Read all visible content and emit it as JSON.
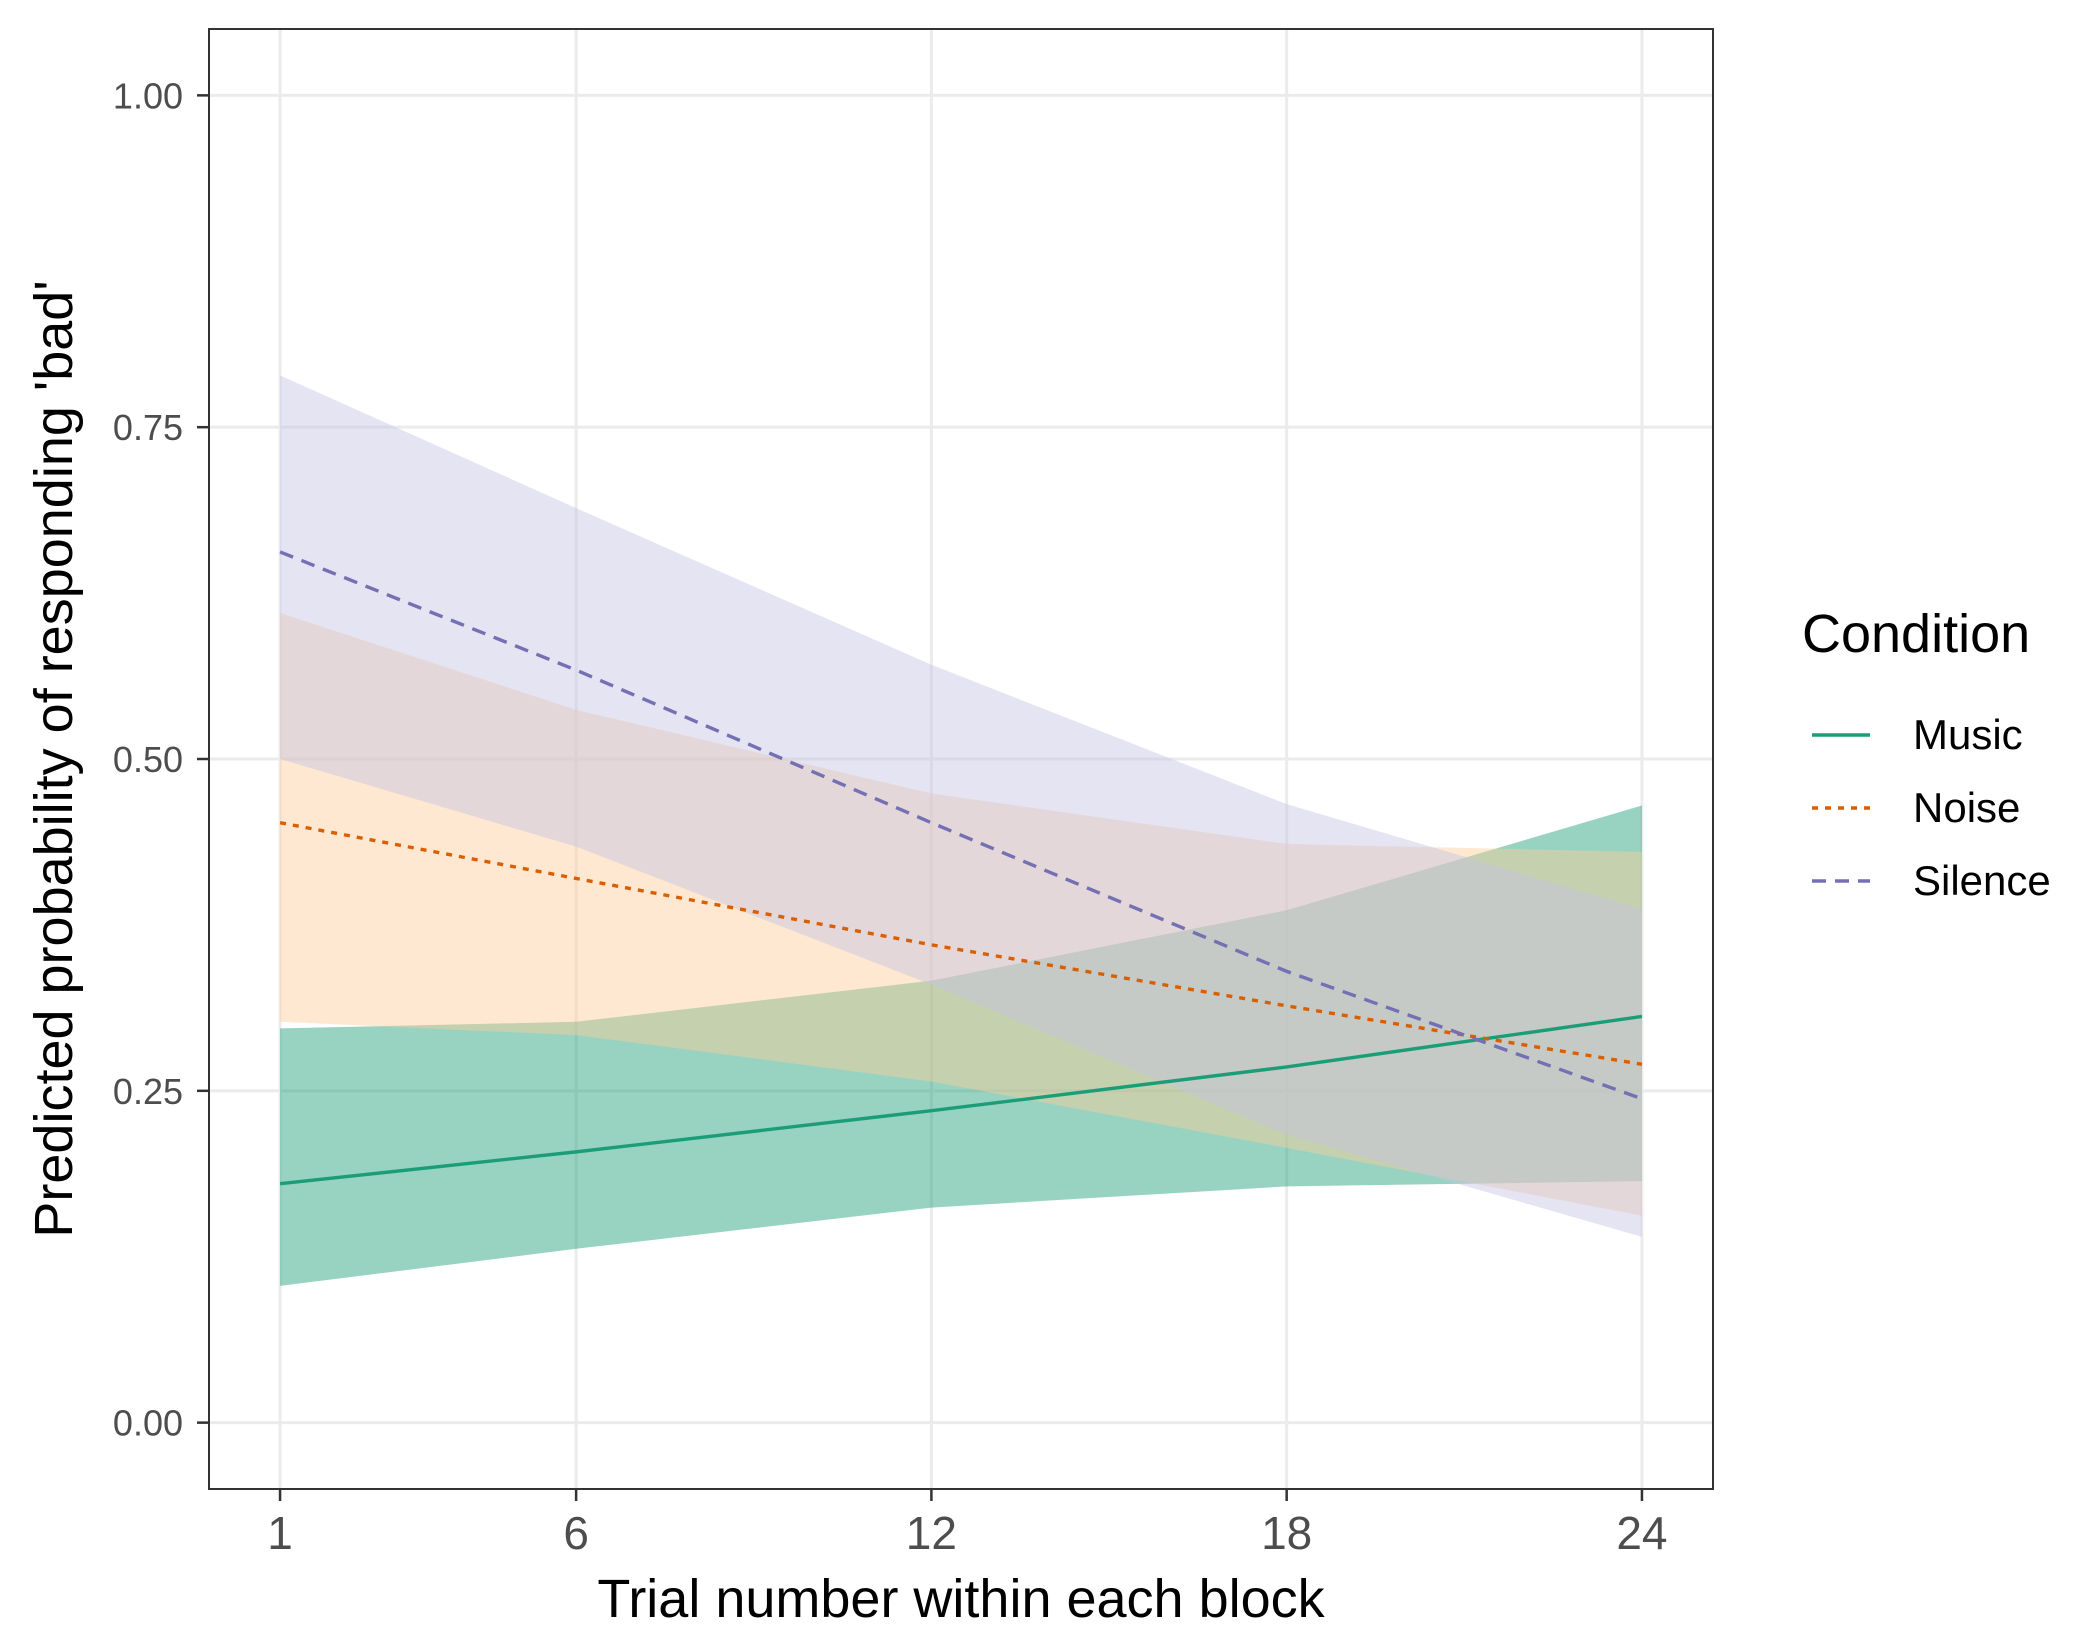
{
  "chart_data": {
    "type": "line",
    "title": "",
    "xlabel": "Trial number within each block",
    "ylabel": "Predicted probability of responding 'bad'",
    "xlim": [
      -0.2,
      25.2
    ],
    "ylim": [
      -0.05,
      1.05
    ],
    "x_ticks": [
      1,
      6,
      12,
      18,
      24
    ],
    "x_tick_labels": [
      "1",
      "6",
      "12",
      "18",
      "24"
    ],
    "y_ticks": [
      0,
      0.25,
      0.5,
      0.75,
      1
    ],
    "y_tick_labels": [
      "0.00",
      "0.25",
      "0.50",
      "0.75",
      "1.00"
    ],
    "grid": true,
    "legend": {
      "title": "Condition",
      "position": "right"
    },
    "x": [
      1,
      6,
      12,
      18,
      24
    ],
    "series": [
      {
        "name": "Music",
        "color": "#1b9e77",
        "fill": "#1b9e77",
        "linestyle": "solid",
        "values": [
          0.18,
          0.204,
          0.235,
          0.268,
          0.306
        ],
        "lower": [
          0.103,
          0.131,
          0.162,
          0.178,
          0.182
        ],
        "upper": [
          0.297,
          0.302,
          0.333,
          0.386,
          0.465
        ]
      },
      {
        "name": "Noise",
        "color": "#d95f02",
        "fill": "#fdcc9a",
        "linestyle": "dotted",
        "values": [
          0.452,
          0.41,
          0.36,
          0.314,
          0.27
        ],
        "lower": [
          0.302,
          0.292,
          0.257,
          0.207,
          0.156
        ],
        "upper": [
          0.61,
          0.537,
          0.474,
          0.436,
          0.43
        ]
      },
      {
        "name": "Silence",
        "color": "#7570b3",
        "fill": "#c6c4e3",
        "linestyle": "dashed",
        "values": [
          0.656,
          0.567,
          0.452,
          0.34,
          0.244
        ],
        "lower": [
          0.5,
          0.434,
          0.33,
          0.217,
          0.14
        ],
        "upper": [
          0.789,
          0.689,
          0.571,
          0.466,
          0.387
        ]
      }
    ]
  }
}
